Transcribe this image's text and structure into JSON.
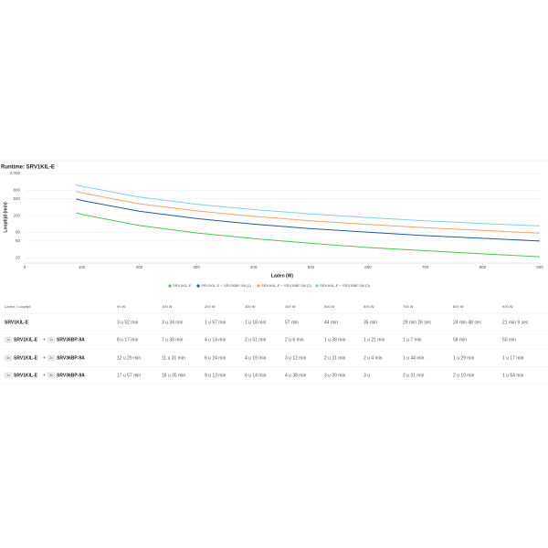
{
  "chart_data": {
    "type": "line",
    "title": "Runtime: SRV1KIL-E",
    "x_label": "Laden (W)",
    "y_label": "Looptijd (min)",
    "x": [
      90,
      100,
      200,
      300,
      400,
      500,
      600,
      700,
      800,
      900
    ],
    "xlim": [
      0,
      900
    ],
    "xticks": [
      0,
      100,
      200,
      300,
      400,
      500,
      600,
      700,
      800,
      900
    ],
    "ylim": [
      15,
      2000
    ],
    "log_y": true,
    "yticks": [
      20,
      50,
      80,
      200,
      500,
      800,
      {
        "value": 2000,
        "label": "2,000"
      }
    ],
    "grid": true,
    "series": [
      {
        "name": "SRV1KIL-E",
        "color": "#4cc35a",
        "values": [
          232,
          214,
          117,
          78,
          57,
          44,
          35,
          29.43,
          24.8,
          21.15
        ]
      },
      {
        "name": "SRV1KIL-E + SRV36BP-9A (1)",
        "color": "#1f5a9e",
        "values": [
          497,
          458,
          254,
          171,
          126,
          98,
          81,
          67,
          58,
          50
        ]
      },
      {
        "name": "SRV1KIL-E + SRV36BP-9A (2)",
        "color": "#f0a46a",
        "values": [
          749,
          691,
          384,
          259,
          192,
          151,
          124,
          104,
          89,
          77
        ]
      },
      {
        "name": "SRV1KIL-E + SRV36BP-9A (3)",
        "color": "#85cde6",
        "values": [
          1077,
          995,
          553,
          374,
          278,
          219,
          180,
          151,
          130,
          114
        ]
      }
    ]
  },
  "table": {
    "header": [
      "Laden / Looptijd",
      "90 W",
      "100 W",
      "200 W",
      "300 W",
      "400 W",
      "500 W",
      "600 W",
      "700 W",
      "800 W",
      "900 W"
    ],
    "rows": [
      {
        "label": {
          "model": "SRV1KIL-E"
        },
        "cells": [
          "3 u 52 min",
          "3 u 34 min",
          "1 u 57 min",
          "1 u 18 min",
          "57 min",
          "44 min",
          "35 min",
          "29 min 26 sec",
          "24 min 48 sec",
          "21 min 9 sec"
        ]
      },
      {
        "label": {
          "badge1": "1x",
          "model": "SRV1KIL-E",
          "plus": "+",
          "badge2": "1x",
          "addon": "SRV36BP-9A"
        },
        "cells": [
          "8 u 17 min",
          "7 u 38 min",
          "4 u 14 min",
          "2 u 51 min",
          "2 u 6 min",
          "1 u 38 min",
          "1 u 21 min",
          "1 u 7 min",
          "58 min",
          "50 min"
        ]
      },
      {
        "label": {
          "badge1": "1x",
          "model": "SRV1KIL-E",
          "plus": "+",
          "badge2": "2x",
          "addon": "SRV36BP-9A"
        },
        "cells": [
          "12 u 29 min",
          "11 u 31 min",
          "6 u 24 min",
          "4 u 19 min",
          "3 u 12 min",
          "2 u 31 min",
          "2 u 4 min",
          "1 u 44 min",
          "1 u 29 min",
          "1 u 17 min"
        ]
      },
      {
        "label": {
          "badge1": "1x",
          "model": "SRV1KIL-E",
          "plus": "+",
          "badge2": "3x",
          "addon": "SRV36BP-9A"
        },
        "cells": [
          "17 u 57 min",
          "16 u 35 min",
          "9 u 13 min",
          "6 u 14 min",
          "4 u 38 min",
          "3 u 39 min",
          "3 u",
          "2 u 31 min",
          "2 u 10 min",
          "1 u 54 min"
        ]
      }
    ]
  }
}
